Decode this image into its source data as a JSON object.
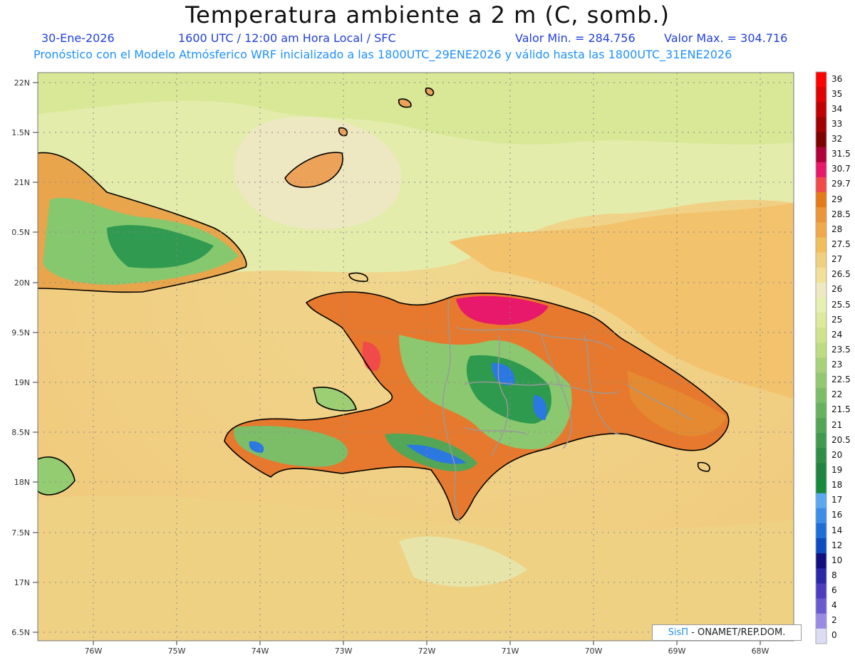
{
  "header": {
    "title": "Temperatura ambiente a 2 m (C, somb.)",
    "date": "30-Ene-2026",
    "time": "1600 UTC / 12:00 am Hora Local / SFC",
    "min_label": "Valor Min. = 284.756",
    "max_label": "Valor Max. = 304.716",
    "subtitle": "Pronóstico con el Modelo Atmósferico WRF inicializado a las 1800UTC_29ENE2026 y válido hasta las  1800UTC_31ENE2026"
  },
  "axes": {
    "lat_labels": [
      "22N",
      "1.5N",
      "21N",
      "0.5N",
      "20N",
      "9.5N",
      "19N",
      "8.5N",
      "18N",
      "7.5N",
      "17N",
      "6.5N"
    ],
    "lon_labels": [
      "76W",
      "75W",
      "74W",
      "73W",
      "72W",
      "71W",
      "70W",
      "69W",
      "68W"
    ]
  },
  "colorbar": {
    "labels": [
      "36",
      "35",
      "34",
      "33",
      "32",
      "31.5",
      "30.7",
      "29.7",
      "29",
      "28.5",
      "28",
      "27.5",
      "27",
      "26.5",
      "26",
      "25.5",
      "25",
      "24",
      "23.5",
      "23",
      "22.5",
      "22",
      "21.5",
      "21",
      "20.5",
      "20",
      "19",
      "18",
      "17",
      "16",
      "14",
      "12",
      "10",
      "8",
      "6",
      "4",
      "2",
      "0"
    ],
    "colors": [
      "#ff0000",
      "#e00000",
      "#c00000",
      "#a00000",
      "#800000",
      "#b0003a",
      "#e8186a",
      "#f04a4a",
      "#e67a1a",
      "#ec9436",
      "#f0a848",
      "#f2be5a",
      "#f0d07e",
      "#f2e098",
      "#eee9c0",
      "#e6f0b0",
      "#dcea9a",
      "#cfe48a",
      "#bddc80",
      "#a8d278",
      "#92c870",
      "#7cbe68",
      "#66b25e",
      "#52a656",
      "#3f9a4e",
      "#2e8e46",
      "#1e8440",
      "#168a3c",
      "#5aa8f0",
      "#3a8ee8",
      "#1e6ed8",
      "#0c4cc0",
      "#101080",
      "#2828a8",
      "#4c3cc0",
      "#6a5ad0",
      "#9a8ae8",
      "#dcdcf4"
    ]
  },
  "credit": {
    "sis": "SisΠ",
    "text": "- ONAMET/REP.DOM."
  },
  "colors": {
    "sea_warm": "#f1cf86",
    "sea_cool": "#e7ecb4",
    "land_hot": "#e8762a",
    "land_mountain": "#2e9a4e",
    "coast": "#000000",
    "borders": "#9a9a9a"
  }
}
